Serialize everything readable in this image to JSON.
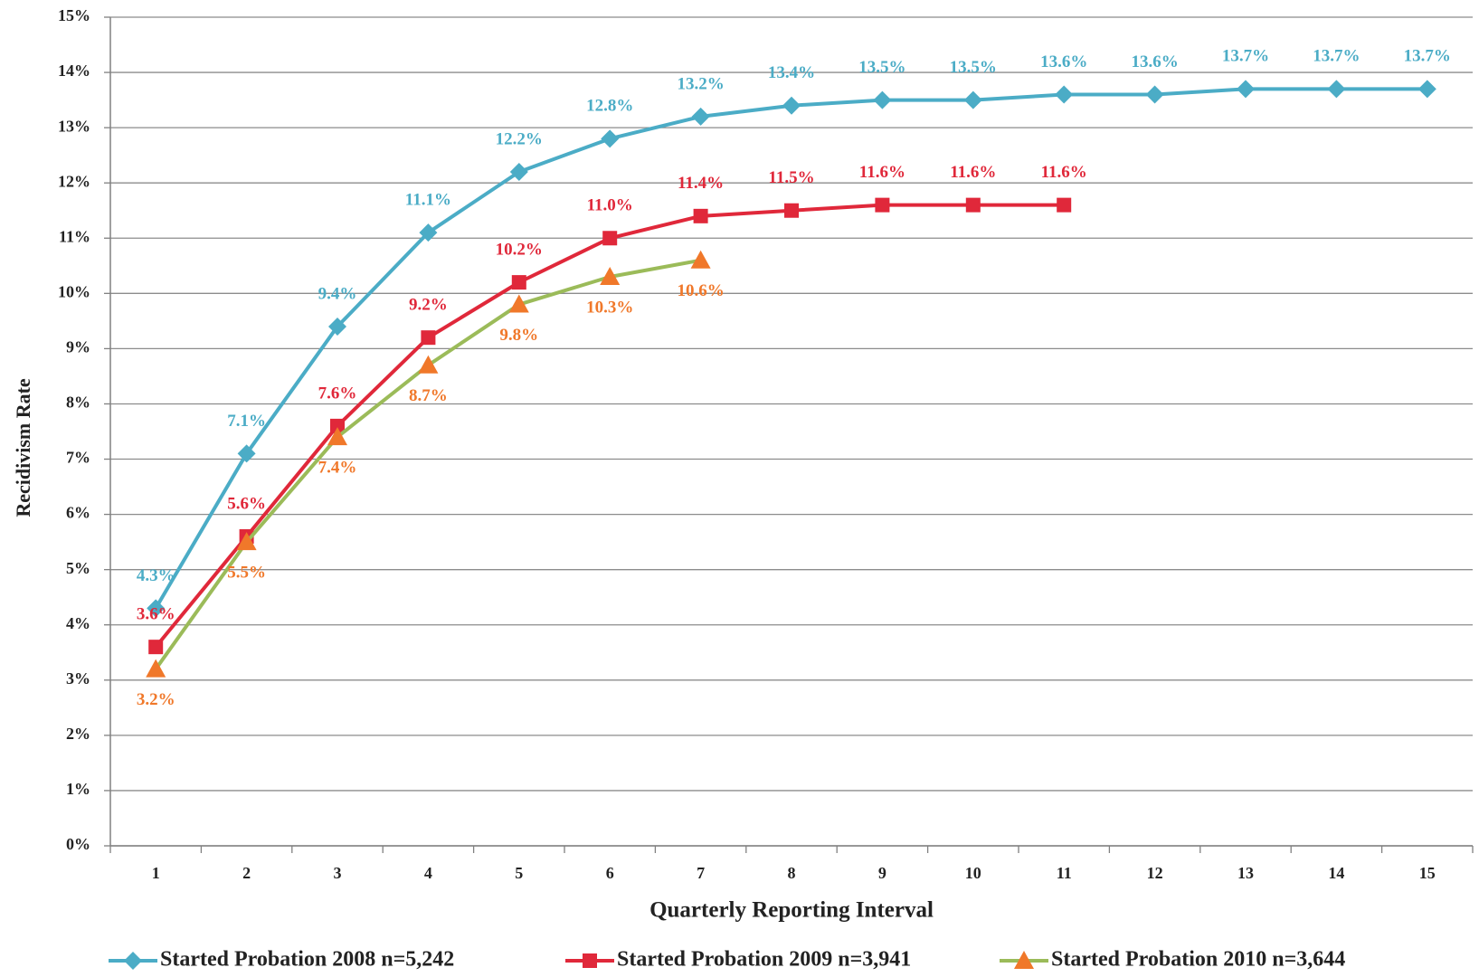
{
  "chart_data": {
    "type": "line",
    "y_label": "Recidivism Rate",
    "x_label": "Quarterly Reporting Interval",
    "categories": [
      "1",
      "2",
      "3",
      "4",
      "5",
      "6",
      "7",
      "8",
      "9",
      "10",
      "11",
      "12",
      "13",
      "14",
      "15"
    ],
    "ylim": [
      0,
      15
    ],
    "yticks": [
      {
        "value": 0,
        "label": "0%"
      },
      {
        "value": 1,
        "label": "1%"
      },
      {
        "value": 2,
        "label": "2%"
      },
      {
        "value": 3,
        "label": "3%"
      },
      {
        "value": 4,
        "label": "4%"
      },
      {
        "value": 5,
        "label": "5%"
      },
      {
        "value": 6,
        "label": "6%"
      },
      {
        "value": 7,
        "label": "7%"
      },
      {
        "value": 8,
        "label": "8%"
      },
      {
        "value": 9,
        "label": "9%"
      },
      {
        "value": 10,
        "label": "10%"
      },
      {
        "value": 11,
        "label": "11%"
      },
      {
        "value": 12,
        "label": "12%"
      },
      {
        "value": 13,
        "label": "13%"
      },
      {
        "value": 14,
        "label": "14%"
      },
      {
        "value": 15,
        "label": "15%"
      }
    ],
    "grid": true,
    "legend": "bottom",
    "series": [
      {
        "name": "Started Probation 2008 n=5,242",
        "color": "#4bacc6",
        "marker_color": "#4bacc6",
        "label_color": "#4bacc6",
        "marker": "diamond",
        "label_position": "above",
        "values": [
          4.3,
          7.1,
          9.4,
          11.1,
          12.2,
          12.8,
          13.2,
          13.4,
          13.5,
          13.5,
          13.6,
          13.6,
          13.7,
          13.7,
          13.7
        ],
        "value_labels": [
          "4.3%",
          "7.1%",
          "9.4%",
          "11.1%",
          "12.2%",
          "12.8%",
          "13.2%",
          "13.4%",
          "13.5%",
          "13.5%",
          "13.6%",
          "13.6%",
          "13.7%",
          "13.7%",
          "13.7%"
        ]
      },
      {
        "name": "Started Probation 2009 n=3,941",
        "color": "#e0283a",
        "marker_color": "#e0283a",
        "label_color": "#e0283a",
        "marker": "square",
        "label_position": "above",
        "values": [
          3.6,
          5.6,
          7.6,
          9.2,
          10.2,
          11.0,
          11.4,
          11.5,
          11.6,
          11.6,
          11.6,
          null,
          null,
          null,
          null
        ],
        "value_labels": [
          "3.6%",
          "5.6%",
          "7.6%",
          "9.2%",
          "10.2%",
          "11.0%",
          "11.4%",
          "11.5%",
          "11.6%",
          "11.6%",
          "11.6%",
          null,
          null,
          null,
          null
        ]
      },
      {
        "name": "Started Probation 2010 n=3,644",
        "color": "#9bbb59",
        "marker_color": "#f0782a",
        "label_color": "#f0782a",
        "marker": "triangle",
        "label_position": "below",
        "values": [
          3.2,
          5.5,
          7.4,
          8.7,
          9.8,
          10.3,
          10.6,
          null,
          null,
          null,
          null,
          null,
          null,
          null,
          null
        ],
        "value_labels": [
          "3.2%",
          "5.5%",
          "7.4%",
          "8.7%",
          "9.8%",
          "10.3%",
          "10.6%",
          null,
          null,
          null,
          null,
          null,
          null,
          null,
          null
        ]
      }
    ]
  }
}
